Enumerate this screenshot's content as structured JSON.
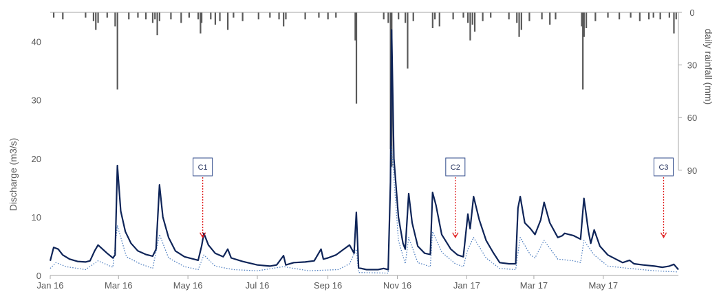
{
  "chart_data": {
    "type": "line",
    "x_axis": {
      "tick_labels": [
        "Jan 16",
        "Mar 16",
        "May 16",
        "Jul 16",
        "Sep 16",
        "Nov 16",
        "Jan 17",
        "Mar 17",
        "May 17"
      ],
      "tick_dates": [
        "2016-01-01",
        "2016-03-01",
        "2016-05-01",
        "2016-07-01",
        "2016-09-01",
        "2016-11-01",
        "2017-01-01",
        "2017-03-01",
        "2017-05-01"
      ],
      "range": [
        "2016-01-01",
        "2017-07-06"
      ]
    },
    "discharge_axis": {
      "label": "Discharge (m3/s)",
      "ticks": [
        0,
        10,
        20,
        30,
        40
      ],
      "range": [
        0,
        45
      ]
    },
    "rainfall_axis": {
      "label": "daily rainfall  (mm)",
      "ticks": [
        0,
        30,
        60,
        90
      ],
      "range": [
        0,
        150
      ],
      "reversed": true
    },
    "series": [
      {
        "style": "solid",
        "color": "#0e2458",
        "points": [
          [
            "2016-01-01",
            2.5
          ],
          [
            "2016-01-04",
            4.8
          ],
          [
            "2016-01-08",
            4.5
          ],
          [
            "2016-01-12",
            3.5
          ],
          [
            "2016-01-18",
            2.8
          ],
          [
            "2016-01-25",
            2.4
          ],
          [
            "2016-02-01",
            2.3
          ],
          [
            "2016-02-05",
            2.5
          ],
          [
            "2016-02-09",
            4.2
          ],
          [
            "2016-02-12",
            5.2
          ],
          [
            "2016-02-16",
            4.5
          ],
          [
            "2016-02-20",
            3.8
          ],
          [
            "2016-02-25",
            3.0
          ],
          [
            "2016-02-27",
            3.5
          ],
          [
            "2016-02-29",
            18.8
          ],
          [
            "2016-03-03",
            11.0
          ],
          [
            "2016-03-07",
            7.5
          ],
          [
            "2016-03-12",
            5.5
          ],
          [
            "2016-03-18",
            4.2
          ],
          [
            "2016-03-25",
            3.6
          ],
          [
            "2016-03-31",
            3.3
          ],
          [
            "2016-04-03",
            4.5
          ],
          [
            "2016-04-06",
            15.5
          ],
          [
            "2016-04-09",
            10.0
          ],
          [
            "2016-04-14",
            6.5
          ],
          [
            "2016-04-20",
            4.2
          ],
          [
            "2016-04-28",
            3.2
          ],
          [
            "2016-05-06",
            2.8
          ],
          [
            "2016-05-10",
            2.6
          ],
          [
            "2016-05-13",
            5.0
          ],
          [
            "2016-05-15",
            7.2
          ],
          [
            "2016-05-19",
            5.2
          ],
          [
            "2016-05-25",
            3.8
          ],
          [
            "2016-06-01",
            3.2
          ],
          [
            "2016-06-05",
            4.5
          ],
          [
            "2016-06-08",
            3.0
          ],
          [
            "2016-06-18",
            2.4
          ],
          [
            "2016-07-01",
            1.8
          ],
          [
            "2016-07-12",
            1.6
          ],
          [
            "2016-07-18",
            1.8
          ],
          [
            "2016-07-24",
            3.4
          ],
          [
            "2016-07-26",
            1.8
          ],
          [
            "2016-08-02",
            2.2
          ],
          [
            "2016-08-12",
            2.3
          ],
          [
            "2016-08-20",
            2.5
          ],
          [
            "2016-08-26",
            4.5
          ],
          [
            "2016-08-28",
            2.8
          ],
          [
            "2016-09-01",
            3.0
          ],
          [
            "2016-09-08",
            3.5
          ],
          [
            "2016-09-15",
            4.5
          ],
          [
            "2016-09-20",
            5.2
          ],
          [
            "2016-09-24",
            3.8
          ],
          [
            "2016-09-26",
            10.8
          ],
          [
            "2016-09-28",
            1.3
          ],
          [
            "2016-10-05",
            1.0
          ],
          [
            "2016-10-15",
            1.0
          ],
          [
            "2016-10-20",
            1.2
          ],
          [
            "2016-10-24",
            1.0
          ],
          [
            "2016-10-26",
            16.0
          ],
          [
            "2016-10-27",
            42.0
          ],
          [
            "2016-10-29",
            20.0
          ],
          [
            "2016-11-02",
            10.0
          ],
          [
            "2016-11-06",
            5.5
          ],
          [
            "2016-11-08",
            4.5
          ],
          [
            "2016-11-11",
            14.0
          ],
          [
            "2016-11-14",
            9.0
          ],
          [
            "2016-11-19",
            5.0
          ],
          [
            "2016-11-25",
            3.8
          ],
          [
            "2016-11-30",
            3.6
          ],
          [
            "2016-12-02",
            14.2
          ],
          [
            "2016-12-05",
            12.0
          ],
          [
            "2016-12-10",
            7.0
          ],
          [
            "2016-12-18",
            4.5
          ],
          [
            "2016-12-24",
            3.5
          ],
          [
            "2016-12-29",
            3.2
          ],
          [
            "2017-01-02",
            10.5
          ],
          [
            "2017-01-04",
            8.0
          ],
          [
            "2017-01-07",
            13.5
          ],
          [
            "2017-01-12",
            9.5
          ],
          [
            "2017-01-18",
            6.0
          ],
          [
            "2017-01-24",
            4.0
          ],
          [
            "2017-01-30",
            2.2
          ],
          [
            "2017-02-07",
            2.0
          ],
          [
            "2017-02-13",
            2.0
          ],
          [
            "2017-02-15",
            11.5
          ],
          [
            "2017-02-17",
            13.5
          ],
          [
            "2017-02-21",
            9.0
          ],
          [
            "2017-02-26",
            8.0
          ],
          [
            "2017-03-02",
            7.0
          ],
          [
            "2017-03-07",
            9.5
          ],
          [
            "2017-03-10",
            12.5
          ],
          [
            "2017-03-15",
            9.0
          ],
          [
            "2017-03-22",
            6.5
          ],
          [
            "2017-03-26",
            6.8
          ],
          [
            "2017-03-28",
            7.2
          ],
          [
            "2017-04-05",
            6.8
          ],
          [
            "2017-04-11",
            6.2
          ],
          [
            "2017-04-14",
            13.2
          ],
          [
            "2017-04-18",
            7.5
          ],
          [
            "2017-04-20",
            5.5
          ],
          [
            "2017-04-23",
            7.8
          ],
          [
            "2017-04-28",
            5.0
          ],
          [
            "2017-05-05",
            3.5
          ],
          [
            "2017-05-12",
            2.8
          ],
          [
            "2017-05-18",
            2.2
          ],
          [
            "2017-05-24",
            2.6
          ],
          [
            "2017-05-28",
            2.0
          ],
          [
            "2017-06-05",
            1.8
          ],
          [
            "2017-06-15",
            1.6
          ],
          [
            "2017-06-22",
            1.4
          ],
          [
            "2017-06-28",
            1.6
          ],
          [
            "2017-07-02",
            1.9
          ],
          [
            "2017-07-06",
            1.0
          ]
        ]
      },
      {
        "style": "dotted",
        "color": "#4f7fc0",
        "points": [
          [
            "2016-01-01",
            1.2
          ],
          [
            "2016-01-06",
            2.2
          ],
          [
            "2016-01-15",
            1.5
          ],
          [
            "2016-02-01",
            1.0
          ],
          [
            "2016-02-12",
            2.5
          ],
          [
            "2016-02-25",
            1.4
          ],
          [
            "2016-02-29",
            8.5
          ],
          [
            "2016-03-08",
            3.2
          ],
          [
            "2016-03-20",
            2.0
          ],
          [
            "2016-03-31",
            1.2
          ],
          [
            "2016-04-06",
            7.0
          ],
          [
            "2016-04-14",
            3.0
          ],
          [
            "2016-04-28",
            1.5
          ],
          [
            "2016-05-10",
            1.0
          ],
          [
            "2016-05-15",
            3.5
          ],
          [
            "2016-05-25",
            1.6
          ],
          [
            "2016-06-10",
            1.0
          ],
          [
            "2016-07-01",
            0.8
          ],
          [
            "2016-07-24",
            1.5
          ],
          [
            "2016-08-15",
            0.8
          ],
          [
            "2016-09-10",
            1.0
          ],
          [
            "2016-09-20",
            2.0
          ],
          [
            "2016-09-26",
            4.5
          ],
          [
            "2016-09-28",
            0.5
          ],
          [
            "2016-10-24",
            0.4
          ],
          [
            "2016-10-27",
            22.0
          ],
          [
            "2016-11-02",
            6.0
          ],
          [
            "2016-11-08",
            2.0
          ],
          [
            "2016-11-11",
            6.5
          ],
          [
            "2016-11-19",
            2.2
          ],
          [
            "2016-11-30",
            1.5
          ],
          [
            "2016-12-02",
            7.5
          ],
          [
            "2016-12-10",
            4.0
          ],
          [
            "2016-12-22",
            2.0
          ],
          [
            "2016-12-29",
            1.5
          ],
          [
            "2017-01-02",
            4.5
          ],
          [
            "2017-01-07",
            6.5
          ],
          [
            "2017-01-18",
            3.0
          ],
          [
            "2017-01-30",
            1.2
          ],
          [
            "2017-02-13",
            1.0
          ],
          [
            "2017-02-17",
            6.5
          ],
          [
            "2017-02-26",
            3.5
          ],
          [
            "2017-03-02",
            3.0
          ],
          [
            "2017-03-10",
            6.0
          ],
          [
            "2017-03-22",
            2.8
          ],
          [
            "2017-04-05",
            2.5
          ],
          [
            "2017-04-11",
            2.2
          ],
          [
            "2017-04-14",
            6.0
          ],
          [
            "2017-04-23",
            3.5
          ],
          [
            "2017-05-05",
            1.6
          ],
          [
            "2017-05-24",
            1.2
          ],
          [
            "2017-06-15",
            0.8
          ],
          [
            "2017-07-06",
            0.6
          ]
        ]
      }
    ],
    "rainfall": [
      [
        "2016-01-04",
        3
      ],
      [
        "2016-01-12",
        4
      ],
      [
        "2016-02-01",
        3
      ],
      [
        "2016-02-08",
        5
      ],
      [
        "2016-02-10",
        10
      ],
      [
        "2016-02-12",
        6
      ],
      [
        "2016-02-20",
        3
      ],
      [
        "2016-02-27",
        8
      ],
      [
        "2016-02-29",
        44
      ],
      [
        "2016-03-10",
        4
      ],
      [
        "2016-03-18",
        3
      ],
      [
        "2016-03-25",
        4
      ],
      [
        "2016-03-31",
        6
      ],
      [
        "2016-04-02",
        4
      ],
      [
        "2016-04-04",
        13
      ],
      [
        "2016-04-06",
        5
      ],
      [
        "2016-04-16",
        4
      ],
      [
        "2016-04-25",
        6
      ],
      [
        "2016-05-02",
        3
      ],
      [
        "2016-05-10",
        4
      ],
      [
        "2016-05-12",
        12
      ],
      [
        "2016-05-13",
        6
      ],
      [
        "2016-05-21",
        4
      ],
      [
        "2016-05-25",
        7
      ],
      [
        "2016-05-29",
        5
      ],
      [
        "2016-06-05",
        10
      ],
      [
        "2016-06-10",
        3
      ],
      [
        "2016-06-18",
        5
      ],
      [
        "2016-07-02",
        4
      ],
      [
        "2016-07-12",
        3
      ],
      [
        "2016-07-20",
        4
      ],
      [
        "2016-07-24",
        8
      ],
      [
        "2016-07-26",
        4
      ],
      [
        "2016-08-12",
        4
      ],
      [
        "2016-08-24",
        3
      ],
      [
        "2016-09-01",
        4
      ],
      [
        "2016-09-08",
        3
      ],
      [
        "2016-09-25",
        16
      ],
      [
        "2016-09-26",
        52
      ],
      [
        "2016-10-20",
        4
      ],
      [
        "2016-10-24",
        6
      ],
      [
        "2016-10-26",
        78
      ],
      [
        "2016-10-27",
        88
      ],
      [
        "2016-11-02",
        4
      ],
      [
        "2016-11-08",
        6
      ],
      [
        "2016-11-10",
        32
      ],
      [
        "2016-11-15",
        5
      ],
      [
        "2016-12-02",
        9
      ],
      [
        "2016-12-04",
        4
      ],
      [
        "2016-12-08",
        8
      ],
      [
        "2016-12-20",
        4
      ],
      [
        "2016-12-29",
        3
      ],
      [
        "2017-01-02",
        6
      ],
      [
        "2017-01-04",
        16
      ],
      [
        "2017-01-06",
        7
      ],
      [
        "2017-01-08",
        11
      ],
      [
        "2017-01-15",
        5
      ],
      [
        "2017-01-22",
        3
      ],
      [
        "2017-02-07",
        4
      ],
      [
        "2017-02-14",
        6
      ],
      [
        "2017-02-16",
        14
      ],
      [
        "2017-02-18",
        10
      ],
      [
        "2017-02-25",
        5
      ],
      [
        "2017-03-08",
        4
      ],
      [
        "2017-03-15",
        7
      ],
      [
        "2017-03-20",
        4
      ],
      [
        "2017-04-12",
        8
      ],
      [
        "2017-04-13",
        44
      ],
      [
        "2017-04-14",
        14
      ],
      [
        "2017-04-16",
        9
      ],
      [
        "2017-04-24",
        5
      ],
      [
        "2017-05-05",
        3
      ],
      [
        "2017-05-15",
        4
      ],
      [
        "2017-05-25",
        3
      ],
      [
        "2017-06-02",
        5
      ],
      [
        "2017-06-10",
        4
      ],
      [
        "2017-06-14",
        3
      ],
      [
        "2017-06-20",
        4
      ],
      [
        "2017-06-28",
        3
      ],
      [
        "2017-07-02",
        12
      ],
      [
        "2017-07-04",
        4
      ]
    ],
    "annotations": [
      {
        "label": "C1",
        "date": "2016-05-14",
        "arrow_to": 6.5
      },
      {
        "label": "C2",
        "date": "2016-12-22",
        "arrow_to": 6.5
      },
      {
        "label": "C3",
        "date": "2017-06-23",
        "arrow_to": 6.5
      }
    ]
  }
}
